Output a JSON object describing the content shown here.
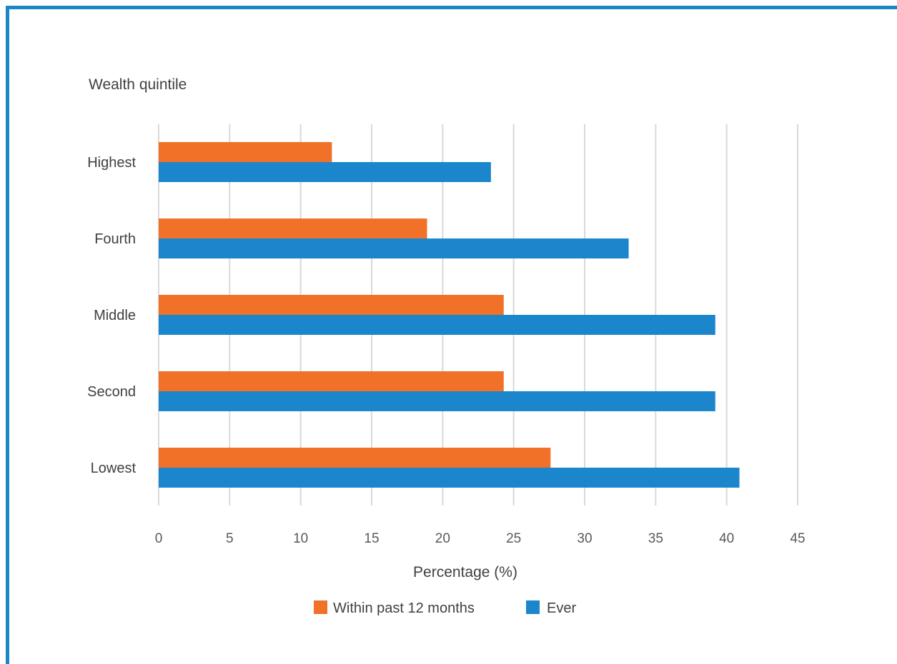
{
  "colors": {
    "frame": "#1b86c8",
    "grid": "#d9d9d9"
  },
  "chart_data": {
    "type": "bar",
    "orientation": "horizontal",
    "title": "",
    "ylabel": "Wealth quintile",
    "xlabel": "Percentage (%)",
    "categories": [
      "Highest",
      "Fourth",
      "Middle",
      "Second",
      "Lowest"
    ],
    "series": [
      {
        "name": "Within past 12 months",
        "color": "#f07127",
        "values": [
          12.2,
          18.9,
          24.3,
          24.3,
          27.6
        ]
      },
      {
        "name": "Ever",
        "color": "#1b86cc",
        "values": [
          23.4,
          33.1,
          39.2,
          39.2,
          40.9
        ]
      }
    ],
    "xlim": [
      0,
      45
    ],
    "xticks": [
      "0",
      "5",
      "10",
      "15",
      "20",
      "25",
      "30",
      "35",
      "40",
      "45"
    ],
    "grid": true,
    "legend_position": "bottom"
  }
}
